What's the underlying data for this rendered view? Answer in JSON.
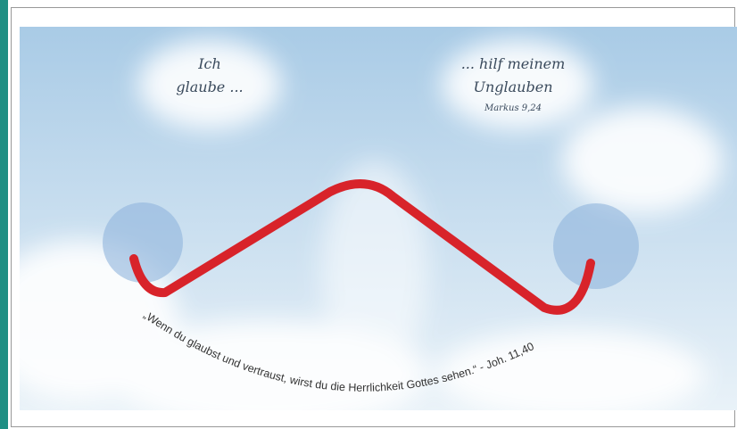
{
  "left_text": {
    "lines": [
      "Ich",
      "glaube ..."
    ]
  },
  "right_text": {
    "lines": [
      "... hilf meinem",
      "Unglauben"
    ],
    "reference": "Markus 9,24"
  },
  "quote": "„Wenn du glaubst und vertraust, wirst du die Herrlichkeit Gottes sehen.“ - Joh. 11,40"
}
